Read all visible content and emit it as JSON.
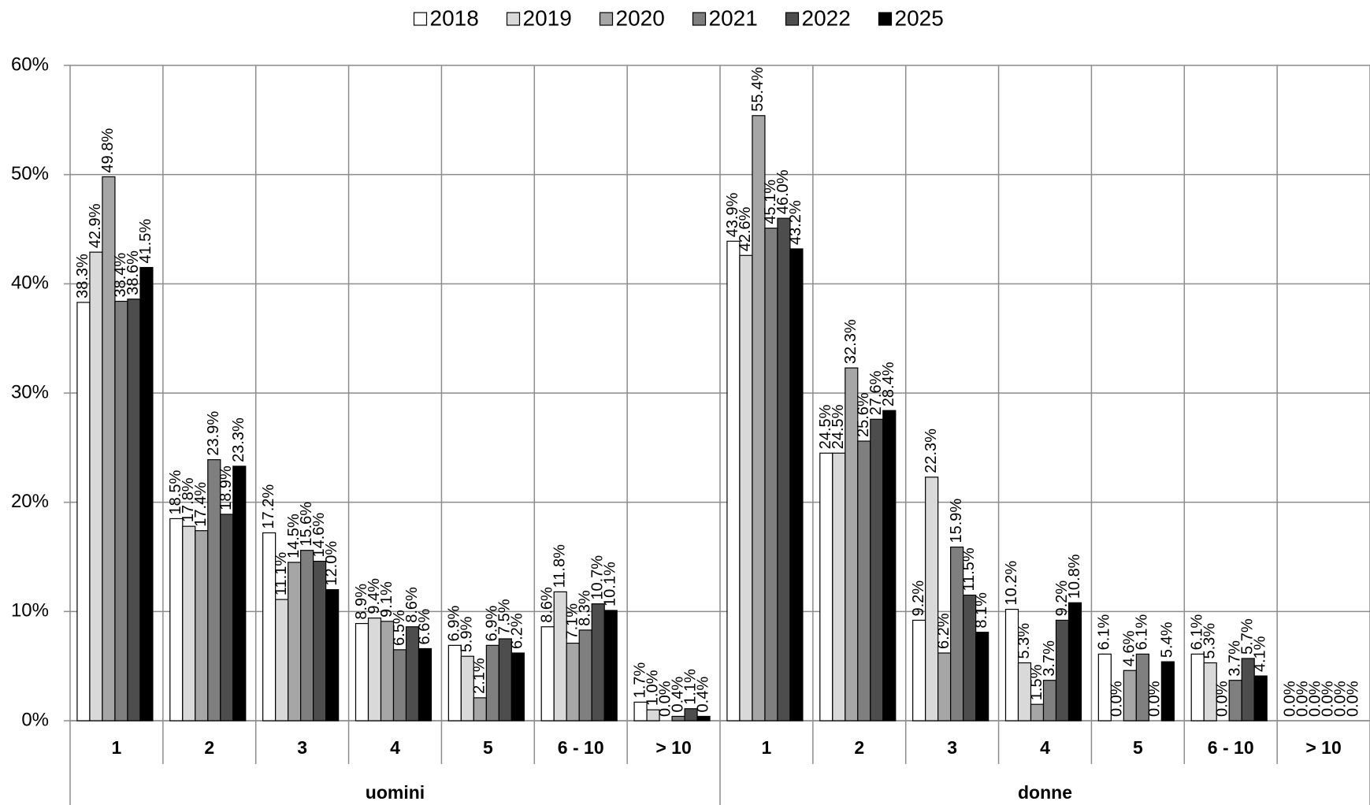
{
  "chart_data": {
    "type": "bar",
    "categories": [
      "1",
      "2",
      "3",
      "4",
      "5",
      "6 - 10",
      "> 10",
      "1",
      "2",
      "3",
      "4",
      "5",
      "6 - 10",
      "> 10"
    ],
    "groups": [
      "uomini",
      "donne"
    ],
    "series": [
      {
        "name": "2018",
        "color": "#ffffff",
        "values": [
          38.3,
          18.5,
          17.2,
          8.9,
          6.9,
          8.6,
          1.7,
          43.9,
          24.5,
          9.2,
          10.2,
          6.1,
          6.1,
          0.0
        ],
        "value_labels": [
          "38.3%",
          "18.5%",
          "17.2%",
          "8.9%",
          "6.9%",
          "8.6%",
          "1.7%",
          "43.9%",
          "24.5%",
          "9.2%",
          "10.2%",
          "6.1%",
          "6.1%",
          "0.0%"
        ]
      },
      {
        "name": "2019",
        "color": "#d9d9d9",
        "values": [
          42.9,
          17.8,
          11.1,
          9.4,
          5.9,
          11.8,
          1.0,
          42.6,
          24.5,
          22.3,
          5.3,
          0.0,
          5.3,
          0.0
        ],
        "value_labels": [
          "42.9%",
          "17.8%",
          "11.1%",
          "9.4%",
          "5.9%",
          "11.8%",
          "1.0%",
          "42.6%",
          "24.5%",
          "22.3%",
          "5.3%",
          "0.0%",
          "5.3%",
          "0.0%"
        ]
      },
      {
        "name": "2020",
        "color": "#a6a6a6",
        "values": [
          49.8,
          17.4,
          14.5,
          9.1,
          2.1,
          7.1,
          0.0,
          55.4,
          32.3,
          6.2,
          1.5,
          4.6,
          0.0,
          0.0
        ],
        "value_labels": [
          "49.8%",
          "17.4%",
          "14.5%",
          "9.1%",
          "2.1%",
          "7.1%",
          "0.0%",
          "55.4%",
          "32.3%",
          "6.2%",
          "1.5%",
          "4.6%",
          "0.0%",
          "0.0%"
        ]
      },
      {
        "name": "2021",
        "color": "#7f7f7f",
        "values": [
          38.4,
          23.9,
          15.6,
          6.5,
          6.9,
          8.3,
          0.4,
          45.1,
          25.6,
          15.9,
          3.7,
          6.1,
          3.7,
          0.0
        ],
        "value_labels": [
          "38.4%",
          "23.9%",
          "15.6%",
          "6.5%",
          "6.9%",
          "8.3%",
          "0.4%",
          "45.1%",
          "25.6%",
          "15.9%",
          "3.7%",
          "6.1%",
          "3.7%",
          "0.0%"
        ]
      },
      {
        "name": "2022",
        "color": "#4d4d4d",
        "values": [
          38.6,
          18.9,
          14.6,
          8.6,
          7.5,
          10.7,
          1.1,
          46.0,
          27.6,
          11.5,
          9.2,
          0.0,
          5.7,
          0.0
        ],
        "value_labels": [
          "38.6%",
          "18.9%",
          "14.6%",
          "8.6%",
          "7.5%",
          "10.7%",
          "1.1%",
          "46.0%",
          "27.6%",
          "11.5%",
          "9.2%",
          "0.0%",
          "5.7%",
          "0.0%"
        ]
      },
      {
        "name": "2025",
        "color": "#000000",
        "values": [
          41.5,
          23.3,
          12.0,
          6.6,
          6.2,
          10.1,
          0.4,
          43.2,
          28.4,
          8.1,
          10.8,
          5.4,
          4.1,
          0.0
        ],
        "value_labels": [
          "41.5%",
          "23.3%",
          "12.0%",
          "6.6%",
          "6.2%",
          "10.1%",
          "0.4%",
          "43.2%",
          "28.4%",
          "8.1%",
          "10.8%",
          "5.4%",
          "4.1%",
          "0.0%"
        ]
      }
    ],
    "ylim": [
      0,
      60
    ],
    "yticks": [
      {
        "value": 0,
        "label": "0%"
      },
      {
        "value": 10,
        "label": "10%"
      },
      {
        "value": 20,
        "label": "20%"
      },
      {
        "value": 30,
        "label": "30%"
      },
      {
        "value": 40,
        "label": "40%"
      },
      {
        "value": 50,
        "label": "50%"
      },
      {
        "value": 60,
        "label": "60%"
      }
    ],
    "grid": true,
    "legend": "top"
  }
}
